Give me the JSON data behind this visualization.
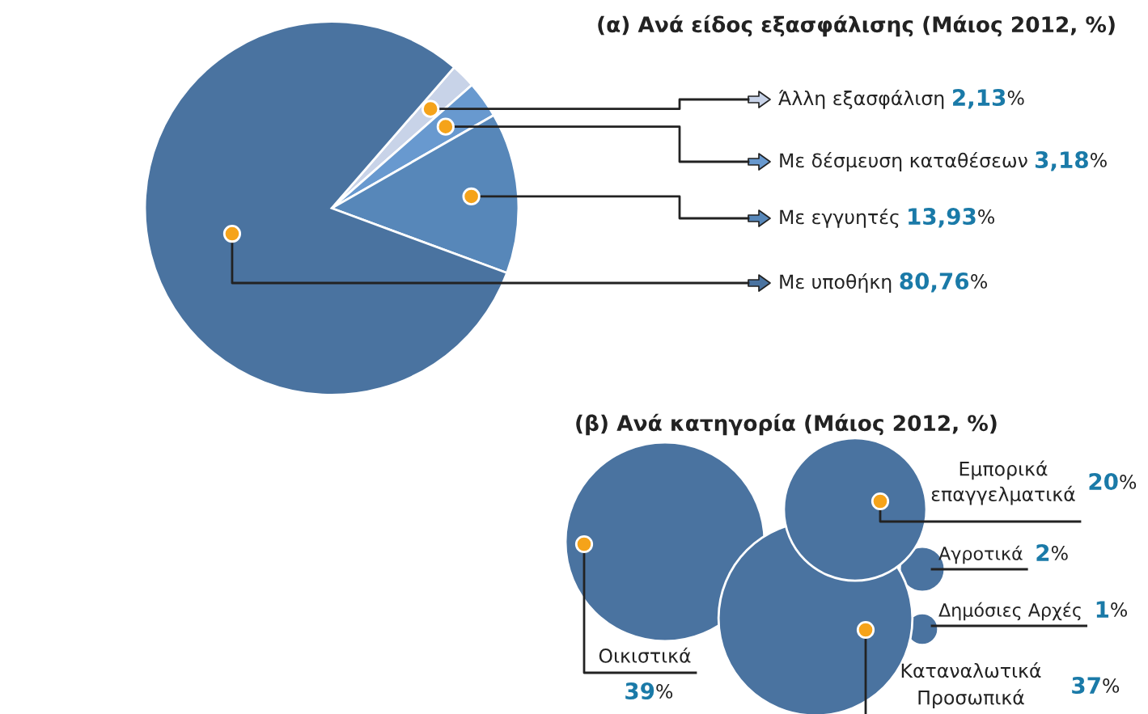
{
  "chart_data": [
    {
      "type": "pie",
      "title": "(α) Ανά είδος εξασφάλισης (Μάιος 2012, %)",
      "categories": [
        "Άλλη εξασφάλιση",
        "Με δέσμευση καταθέσεων",
        "Με εγγυητές",
        "Με υποθήκη"
      ],
      "values": [
        2.13,
        3.18,
        13.93,
        80.76
      ],
      "value_labels": [
        "2,13%",
        "3,18%",
        "13,93%",
        "80,76%"
      ],
      "colors": [
        "#c8d3e8",
        "#6899cf",
        "#5787b9",
        "#4a73a0"
      ],
      "legend": "right"
    },
    {
      "type": "other",
      "title": "(β) Ανά κατηγορία (Μάιος 2012, %)",
      "categories": [
        "Οικιστικά",
        "Εμπορικά επαγγελματικά",
        "Αγροτικά",
        "Δημόσιες Αρχές",
        "Καταναλωτικά Προσωπικά"
      ],
      "values": [
        39,
        20,
        2,
        1,
        37
      ],
      "value_labels": [
        "39%",
        "20%",
        "2%",
        "1%",
        "37%"
      ],
      "colors": [
        "#4a73a0",
        "#4a73a0",
        "#4a73a0",
        "#4a73a0",
        "#4a73a0"
      ]
    }
  ]
}
